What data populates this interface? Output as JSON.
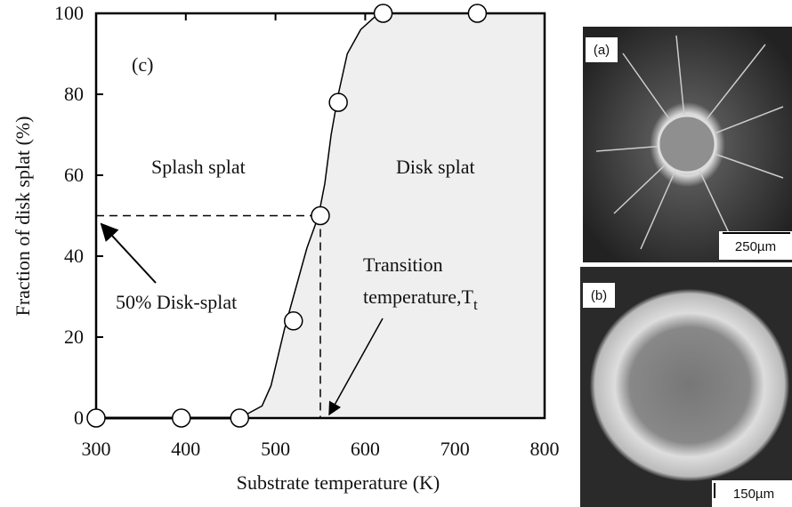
{
  "chart_data": {
    "type": "line",
    "panel_label": "(c)",
    "x_label": "Substrate temperature (K)",
    "y_label": "Fraction of disk splat (%)",
    "xlim": [
      300,
      800
    ],
    "ylim": [
      0,
      100
    ],
    "xticks": [
      300,
      400,
      500,
      600,
      700,
      800
    ],
    "yticks": [
      0,
      20,
      40,
      60,
      80,
      100
    ],
    "data_points": {
      "x": [
        300,
        395,
        460,
        520,
        550,
        570,
        620,
        725
      ],
      "values": [
        0,
        0,
        0,
        24,
        50,
        78,
        100,
        100
      ],
      "color": "#ffffff"
    },
    "fit_curve": {
      "x": [
        460,
        485,
        495,
        510,
        520,
        535,
        548,
        555,
        562,
        570,
        580,
        595,
        610,
        625
      ],
      "values": [
        0,
        3,
        8,
        22,
        30,
        42,
        50,
        58,
        70,
        80,
        90,
        96,
        99,
        100
      ],
      "color": "#000000",
      "fill": "#efefef"
    },
    "reference": {
      "x": 550,
      "y": 50
    },
    "annotations": {
      "splash": "Splash splat",
      "disk": "Disk splat",
      "fifty": "50% Disk-splat",
      "transition": [
        "Transition",
        "temperature,T",
        "t"
      ]
    }
  },
  "images": [
    {
      "label": "(a)",
      "scale": "250µm"
    },
    {
      "label": "(b)",
      "scale": "150µm"
    }
  ]
}
